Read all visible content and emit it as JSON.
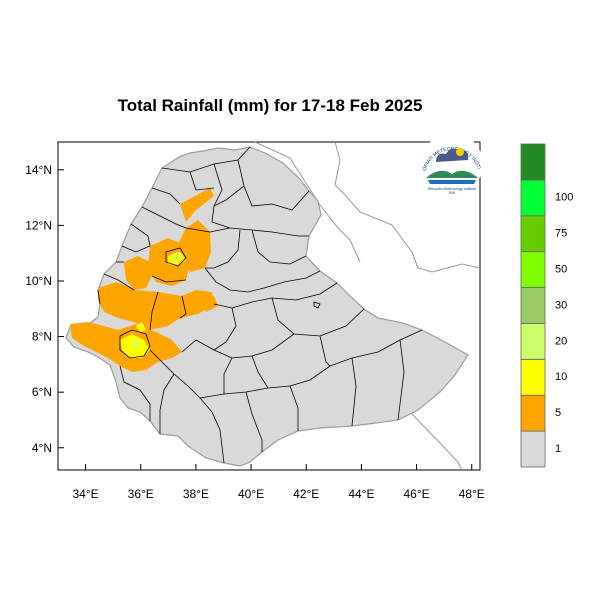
{
  "title": "Total Rainfall (mm) for 17-18 Feb 2025",
  "map": {
    "lon_ticks": [
      "34°E",
      "36°E",
      "38°E",
      "40°E",
      "42°E",
      "44°E",
      "46°E",
      "48°E"
    ],
    "lat_ticks": [
      "14°N",
      "12°N",
      "10°N",
      "8°N",
      "6°N",
      "4°N"
    ],
    "lon_range": [
      33.0,
      48.3
    ],
    "lat_range": [
      3.2,
      15.0
    ],
    "land_color": "#d9d9d9",
    "ocean_color": "#ffffff"
  },
  "legend": {
    "bins": [
      {
        "label": "1",
        "color": "#d9d9d9"
      },
      {
        "label": "5",
        "color": "#ffa500"
      },
      {
        "label": "10",
        "color": "#ffff00"
      },
      {
        "label": "20",
        "color": "#ccff66"
      },
      {
        "label": "30",
        "color": "#99cc66"
      },
      {
        "label": "50",
        "color": "#80ff00"
      },
      {
        "label": "75",
        "color": "#66cc00"
      },
      {
        "label": "100",
        "color": "#00ff33"
      },
      {
        "label": "",
        "color": "#228b22"
      }
    ]
  },
  "logo": {
    "arc_text": "ETHIOPIAN METEOROLOGY INSTITUTE",
    "org_name": "Ethiopian Meteorology Institute",
    "abbr": "EMI"
  }
}
